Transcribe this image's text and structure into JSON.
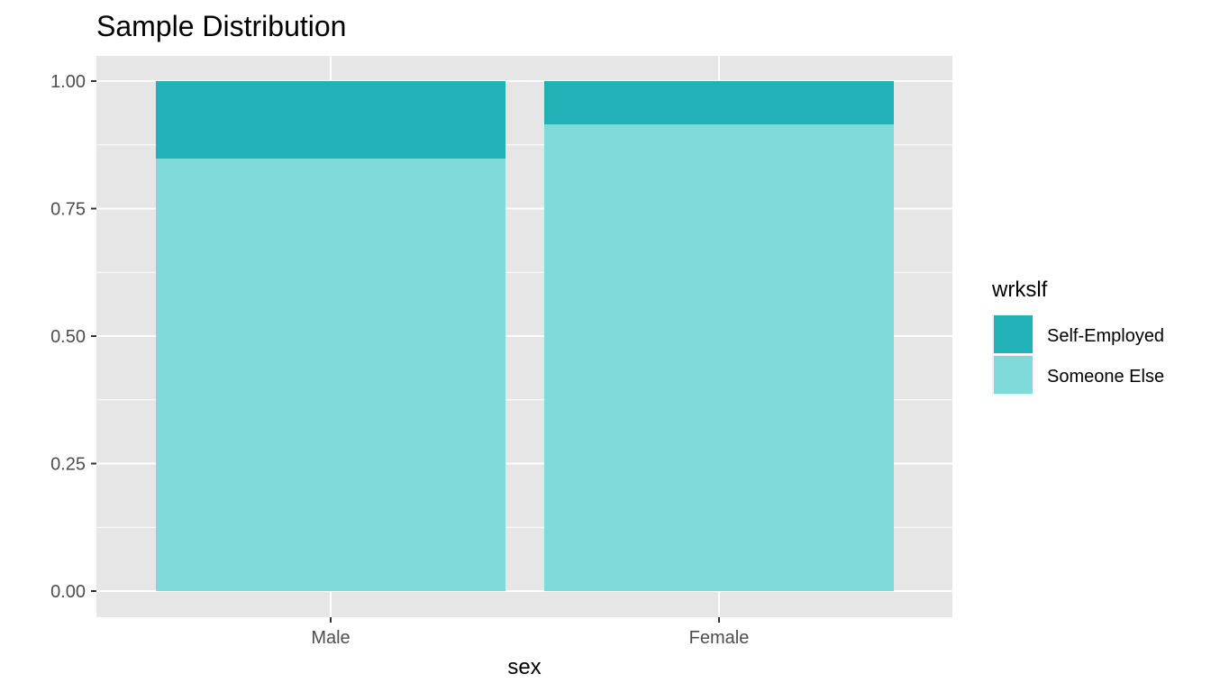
{
  "chart_data": {
    "type": "bar",
    "stacked": true,
    "title": "Sample Distribution",
    "xlabel": "sex",
    "ylabel": "",
    "ylim": [
      0,
      1
    ],
    "yticks": [
      "0.00",
      "0.25",
      "0.50",
      "0.75",
      "1.00"
    ],
    "ytick_values": [
      0,
      0.25,
      0.5,
      0.75,
      1.0
    ],
    "categories": [
      "Male",
      "Female"
    ],
    "series": [
      {
        "name": "Someone Else",
        "values": [
          0.848,
          0.915
        ],
        "color": "#81DADA"
      },
      {
        "name": "Self-Employed",
        "values": [
          0.152,
          0.085
        ],
        "color": "#22B1B6"
      }
    ],
    "legend": {
      "title": "wrkslf",
      "position": "right",
      "items": [
        {
          "label": "Self-Employed",
          "color": "#22B1B6"
        },
        {
          "label": "Someone Else",
          "color": "#81DADA"
        }
      ]
    },
    "grid": true,
    "panel_background": "#E6E6E6",
    "grid_color": "#FFFFFF"
  }
}
